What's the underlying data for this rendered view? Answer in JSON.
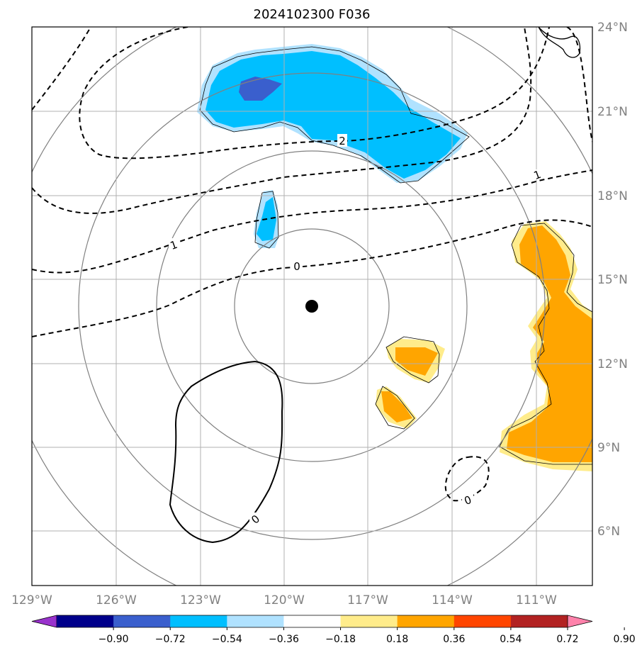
{
  "title": "2024102300 F036",
  "map": {
    "lon_labels": [
      "129°W",
      "126°W",
      "123°W",
      "120°W",
      "117°W",
      "114°W",
      "111°W"
    ],
    "lat_labels": [
      "24°N",
      "21°N",
      "18°N",
      "15°N",
      "12°N",
      "9°N",
      "6°N"
    ],
    "center_marker": {
      "lon": -119.0,
      "lat": 14.0
    },
    "range_ring_color": "#808080",
    "grid_color": "#b0b0b0"
  },
  "contour_labels": [
    {
      "text": "2"
    },
    {
      "text": "1"
    },
    {
      "text": "1"
    },
    {
      "text": "0"
    },
    {
      "text": "0"
    },
    {
      "text": "0"
    }
  ],
  "colorbar": {
    "colors": [
      "#9932cc",
      "#00008b",
      "#3a5fcd",
      "#00bfff",
      "#b0e2ff",
      "#ffffff",
      "#ffec8b",
      "#ffa500",
      "#ff4500",
      "#b22222",
      "#ff82ab"
    ],
    "tick_labels": [
      "−0.90",
      "−0.72",
      "−0.54",
      "−0.36",
      "−0.18",
      "0.18",
      "0.36",
      "0.54",
      "0.72",
      "0.90"
    ]
  }
}
